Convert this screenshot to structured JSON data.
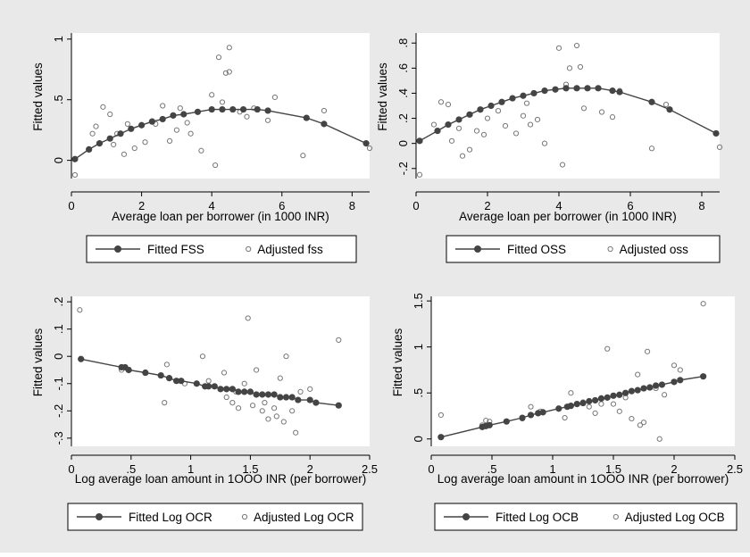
{
  "chart_data": [
    {
      "type": "scatter",
      "ylabel": "Fitted values",
      "xlabel": "Average loan per borrower (in 1000 INR)",
      "xlim": [
        0,
        8.5
      ],
      "ylim": [
        -0.15,
        1.05
      ],
      "xticks": [
        "0",
        "2",
        "4",
        "6",
        "8"
      ],
      "xtick_values": [
        0,
        2,
        4,
        6,
        8
      ],
      "yticks": [
        "0",
        ".5",
        "1"
      ],
      "ytick_values": [
        0,
        0.5,
        1
      ],
      "grid": false,
      "legend_position": "bottom",
      "series": [
        {
          "name": "Fitted FSS",
          "kind": "line-markers",
          "x": [
            0.1,
            0.5,
            0.8,
            1.1,
            1.4,
            1.7,
            2.0,
            2.3,
            2.6,
            2.9,
            3.2,
            3.6,
            4.0,
            4.3,
            4.6,
            4.9,
            5.3,
            5.6,
            6.7,
            7.2,
            8.4
          ],
          "y": [
            0.01,
            0.09,
            0.14,
            0.18,
            0.22,
            0.26,
            0.29,
            0.32,
            0.34,
            0.37,
            0.38,
            0.4,
            0.42,
            0.42,
            0.42,
            0.42,
            0.42,
            0.41,
            0.35,
            0.3,
            0.14
          ]
        },
        {
          "name": "Adjusted fss",
          "kind": "points",
          "x": [
            0.1,
            0.6,
            0.7,
            0.9,
            1.1,
            1.2,
            1.3,
            1.5,
            1.6,
            1.8,
            2.1,
            2.4,
            2.6,
            2.8,
            3.0,
            3.1,
            3.3,
            3.4,
            3.7,
            4.0,
            4.1,
            4.2,
            4.3,
            4.4,
            4.5,
            4.5,
            4.8,
            5.0,
            5.2,
            5.6,
            5.8,
            6.6,
            7.2,
            8.5
          ],
          "y": [
            -0.12,
            0.22,
            0.28,
            0.44,
            0.38,
            0.13,
            0.22,
            0.05,
            0.3,
            0.1,
            0.15,
            0.3,
            0.45,
            0.16,
            0.25,
            0.43,
            0.31,
            0.22,
            0.08,
            0.54,
            -0.04,
            0.85,
            0.48,
            0.72,
            0.93,
            0.73,
            0.4,
            0.36,
            0.43,
            0.33,
            0.52,
            0.04,
            0.41,
            0.1
          ]
        }
      ]
    },
    {
      "type": "scatter",
      "ylabel": "Fitted values",
      "xlabel": "Average loan per borrower (in 1000 INR)",
      "xlim": [
        0,
        8.5
      ],
      "ylim": [
        -0.28,
        0.88
      ],
      "xticks": [
        "0",
        "2",
        "4",
        "6",
        "8"
      ],
      "xtick_values": [
        0,
        2,
        4,
        6,
        8
      ],
      "yticks": [
        "-.2",
        "0",
        ".2",
        ".4",
        ".6",
        ".8"
      ],
      "ytick_values": [
        -0.2,
        0,
        0.2,
        0.4,
        0.6,
        0.8
      ],
      "grid": false,
      "legend_position": "bottom",
      "series": [
        {
          "name": "Fitted OSS",
          "kind": "line-markers",
          "x": [
            0.1,
            0.6,
            0.9,
            1.2,
            1.5,
            1.8,
            2.1,
            2.4,
            2.7,
            3.0,
            3.3,
            3.6,
            3.9,
            4.2,
            4.5,
            4.8,
            5.1,
            5.5,
            5.7,
            6.6,
            7.1,
            8.4
          ],
          "y": [
            0.02,
            0.1,
            0.15,
            0.19,
            0.23,
            0.27,
            0.3,
            0.33,
            0.36,
            0.38,
            0.4,
            0.42,
            0.43,
            0.44,
            0.44,
            0.44,
            0.44,
            0.42,
            0.41,
            0.33,
            0.27,
            0.08
          ]
        },
        {
          "name": "Adjusted oss",
          "kind": "points",
          "x": [
            0.1,
            0.5,
            0.7,
            0.9,
            1.0,
            1.2,
            1.3,
            1.5,
            1.7,
            1.9,
            2.0,
            2.3,
            2.5,
            2.8,
            3.0,
            3.1,
            3.2,
            3.4,
            3.6,
            4.0,
            4.1,
            4.2,
            4.3,
            4.5,
            4.6,
            4.7,
            5.2,
            5.5,
            5.7,
            6.6,
            7.0,
            8.5
          ],
          "y": [
            -0.25,
            0.15,
            0.33,
            0.31,
            0.02,
            0.12,
            -0.1,
            -0.05,
            0.1,
            0.07,
            0.2,
            0.26,
            0.14,
            0.08,
            0.22,
            0.32,
            0.15,
            0.19,
            0.0,
            0.76,
            -0.17,
            0.47,
            0.6,
            0.78,
            0.61,
            0.28,
            0.25,
            0.21,
            0.42,
            -0.04,
            0.31,
            -0.03
          ]
        }
      ]
    },
    {
      "type": "scatter",
      "ylabel": "Fitted values",
      "xlabel": "Log average loan amount in 1OOO INR (per borrower)",
      "xlim": [
        0,
        2.5
      ],
      "ylim": [
        -0.33,
        0.22
      ],
      "xticks": [
        "0",
        ".5",
        "1",
        "1.5",
        "2",
        "2.5"
      ],
      "xtick_values": [
        0,
        0.5,
        1,
        1.5,
        2,
        2.5
      ],
      "yticks": [
        "-.3",
        "-.2",
        "-.1",
        "0",
        ".1",
        ".2"
      ],
      "ytick_values": [
        -0.3,
        -0.2,
        -0.1,
        0,
        0.1,
        0.2
      ],
      "grid": false,
      "legend_position": "bottom",
      "series": [
        {
          "name": "Fitted Log OCR",
          "kind": "line-markers",
          "x": [
            0.08,
            0.42,
            0.45,
            0.48,
            0.62,
            0.75,
            0.82,
            0.88,
            0.92,
            1.05,
            1.12,
            1.15,
            1.2,
            1.25,
            1.3,
            1.35,
            1.4,
            1.45,
            1.5,
            1.55,
            1.6,
            1.65,
            1.7,
            1.75,
            1.8,
            1.85,
            1.9,
            2.0,
            2.05,
            2.24
          ],
          "y": [
            -0.01,
            -0.04,
            -0.04,
            -0.05,
            -0.06,
            -0.07,
            -0.08,
            -0.09,
            -0.09,
            -0.1,
            -0.11,
            -0.11,
            -0.11,
            -0.12,
            -0.12,
            -0.12,
            -0.13,
            -0.13,
            -0.13,
            -0.14,
            -0.14,
            -0.14,
            -0.14,
            -0.15,
            -0.15,
            -0.15,
            -0.16,
            -0.16,
            -0.17,
            -0.18
          ]
        },
        {
          "name": "Adjusted Log OCR",
          "kind": "points",
          "x": [
            0.07,
            0.42,
            0.45,
            0.78,
            0.8,
            0.95,
            1.1,
            1.15,
            1.28,
            1.3,
            1.35,
            1.38,
            1.4,
            1.45,
            1.48,
            1.52,
            1.55,
            1.6,
            1.62,
            1.65,
            1.7,
            1.72,
            1.75,
            1.78,
            1.8,
            1.85,
            1.88,
            1.92,
            2.0,
            2.24
          ],
          "y": [
            0.17,
            -0.05,
            -0.04,
            -0.17,
            -0.03,
            -0.1,
            0.0,
            -0.09,
            -0.06,
            -0.15,
            -0.17,
            -0.13,
            -0.19,
            -0.1,
            0.14,
            -0.18,
            -0.05,
            -0.2,
            -0.17,
            -0.23,
            -0.19,
            -0.22,
            -0.08,
            -0.24,
            0.0,
            -0.2,
            -0.28,
            -0.13,
            -0.12,
            0.06
          ]
        }
      ]
    },
    {
      "type": "scatter",
      "ylabel": "Fitted values",
      "xlabel": "Log average loan amount in 1OOO INR (per borrower)",
      "xlim": [
        0,
        2.5
      ],
      "ylim": [
        -0.08,
        1.55
      ],
      "xticks": [
        "0",
        ".5",
        "1",
        "1.5",
        "2",
        "2.5"
      ],
      "xtick_values": [
        0,
        0.5,
        1,
        1.5,
        2,
        2.5
      ],
      "yticks": [
        "0",
        ".5",
        "1",
        "1.5"
      ],
      "ytick_values": [
        0,
        0.5,
        1,
        1.5
      ],
      "grid": false,
      "legend_position": "bottom",
      "series": [
        {
          "name": "Fitted Log OCB",
          "kind": "line-markers",
          "x": [
            0.08,
            0.42,
            0.45,
            0.48,
            0.62,
            0.75,
            0.82,
            0.88,
            0.92,
            1.05,
            1.12,
            1.15,
            1.2,
            1.25,
            1.3,
            1.35,
            1.4,
            1.45,
            1.5,
            1.55,
            1.6,
            1.65,
            1.7,
            1.75,
            1.8,
            1.85,
            1.9,
            2.0,
            2.05,
            2.24
          ],
          "y": [
            0.02,
            0.13,
            0.14,
            0.15,
            0.19,
            0.23,
            0.26,
            0.28,
            0.29,
            0.33,
            0.35,
            0.36,
            0.38,
            0.39,
            0.41,
            0.42,
            0.44,
            0.45,
            0.47,
            0.48,
            0.5,
            0.52,
            0.53,
            0.55,
            0.56,
            0.58,
            0.59,
            0.62,
            0.64,
            0.68
          ]
        },
        {
          "name": "Adjusted Log OCB",
          "kind": "points",
          "x": [
            0.08,
            0.42,
            0.45,
            0.48,
            0.75,
            0.82,
            0.9,
            1.1,
            1.15,
            1.25,
            1.3,
            1.35,
            1.4,
            1.45,
            1.5,
            1.55,
            1.6,
            1.65,
            1.7,
            1.72,
            1.75,
            1.78,
            1.85,
            1.88,
            1.92,
            2.0,
            2.05,
            2.24
          ],
          "y": [
            0.26,
            0.15,
            0.2,
            0.19,
            0.22,
            0.35,
            0.3,
            0.23,
            0.5,
            0.4,
            0.35,
            0.28,
            0.38,
            0.98,
            0.38,
            0.3,
            0.45,
            0.22,
            0.7,
            0.15,
            0.18,
            0.95,
            0.55,
            0.0,
            0.48,
            0.8,
            0.75,
            1.47
          ]
        }
      ]
    }
  ],
  "colors": {
    "background": "#e9e9e9",
    "plot_region": "#ffffff",
    "fitted_line": "#444444",
    "fitted_marker": "#444444",
    "adjusted_marker": "#777777"
  }
}
